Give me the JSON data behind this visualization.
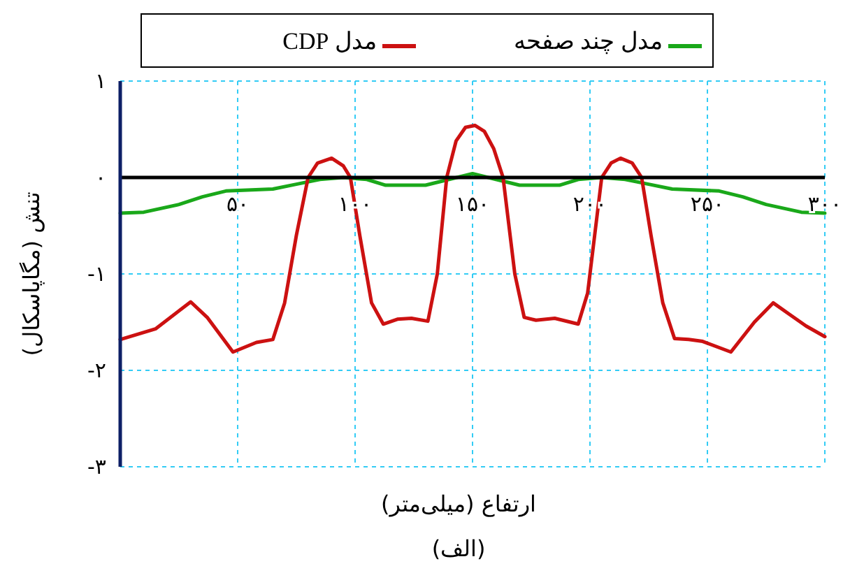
{
  "chart_data": {
    "type": "line",
    "xlabel": "ارتفاع (میلی‌متر)",
    "ylabel": "تنش (مگاپاسکال)",
    "annotations": [
      "(الف)"
    ],
    "xlim": [
      0,
      300
    ],
    "ylim": [
      -3,
      1
    ],
    "xticks": [
      {
        "value": 50,
        "label": "۵۰"
      },
      {
        "value": 100,
        "label": "۱۰۰"
      },
      {
        "value": 150,
        "label": "۱۵۰"
      },
      {
        "value": 200,
        "label": "۲۰۰"
      },
      {
        "value": 250,
        "label": "۲۵۰"
      },
      {
        "value": 300,
        "label": "۳۰۰"
      }
    ],
    "yticks": [
      {
        "value": -3,
        "label": "-۳"
      },
      {
        "value": -2,
        "label": "-۲"
      },
      {
        "value": -1,
        "label": "-۱"
      },
      {
        "value": 0,
        "label": "۰"
      },
      {
        "value": 1,
        "label": "۱"
      }
    ],
    "grid": true,
    "legend": "top",
    "line_style": "solid",
    "marker": "none",
    "series": [
      {
        "name": "مدل چند صفحه",
        "color": "#1aa81a",
        "x": [
          0,
          10,
          25,
          35,
          45,
          65,
          75,
          85,
          95,
          105,
          113,
          130,
          140,
          150,
          160,
          170,
          187,
          195,
          205,
          215,
          225,
          235,
          255,
          265,
          275,
          290,
          300
        ],
        "values": [
          -0.37,
          -0.36,
          -0.28,
          -0.2,
          -0.14,
          -0.12,
          -0.07,
          -0.02,
          0,
          -0.02,
          -0.08,
          -0.08,
          -0.02,
          0.04,
          -0.02,
          -0.08,
          -0.08,
          -0.02,
          0,
          -0.02,
          -0.07,
          -0.12,
          -0.14,
          -0.2,
          -0.28,
          -0.36,
          -0.37
        ]
      },
      {
        "name": "مدل CDP",
        "color": "#cc1111",
        "x": [
          0,
          15,
          30,
          37,
          48,
          58,
          65,
          70,
          75,
          80,
          84,
          90,
          95,
          98,
          102,
          107,
          112,
          118,
          124,
          131,
          135,
          139,
          143,
          147,
          151,
          155,
          159,
          163,
          168,
          172,
          177,
          185,
          195,
          199,
          202,
          205,
          209,
          213,
          218,
          222,
          226,
          231,
          236,
          242,
          248,
          260,
          270,
          278,
          285,
          292,
          300
        ],
        "values": [
          -1.68,
          -1.57,
          -1.29,
          -1.45,
          -1.81,
          -1.71,
          -1.68,
          -1.3,
          -0.6,
          0,
          0.15,
          0.2,
          0.12,
          0,
          -0.6,
          -1.3,
          -1.52,
          -1.47,
          -1.46,
          -1.49,
          -1.0,
          0,
          0.38,
          0.52,
          0.54,
          0.48,
          0.3,
          0,
          -1.0,
          -1.45,
          -1.48,
          -1.46,
          -1.52,
          -1.2,
          -0.6,
          0,
          0.15,
          0.2,
          0.15,
          0,
          -0.6,
          -1.3,
          -1.67,
          -1.68,
          -1.7,
          -1.81,
          -1.5,
          -1.3,
          -1.42,
          -1.54,
          -1.65
        ]
      }
    ]
  }
}
